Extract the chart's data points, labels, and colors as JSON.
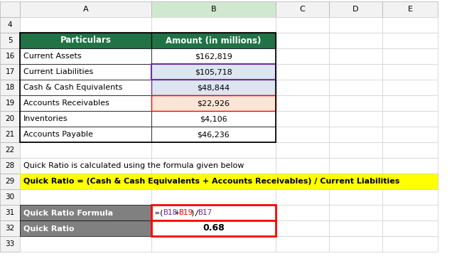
{
  "col_headers": [
    "A",
    "B",
    "C",
    "D",
    "E"
  ],
  "row_numbers": [
    "4",
    "5",
    "16",
    "17",
    "18",
    "19",
    "20",
    "21",
    "22",
    "28",
    "29",
    "30",
    "31",
    "32",
    "33"
  ],
  "table_header_row": [
    "Particulars",
    "Amount (in millions)"
  ],
  "table_rows": [
    [
      "Current Assets",
      "$162,819"
    ],
    [
      "Current Liabilities",
      "$105,718"
    ],
    [
      "Cash & Cash Equivalents",
      "$48,844"
    ],
    [
      "Accounts Receivables",
      "$22,926"
    ],
    [
      "Inventories",
      "$4,106"
    ],
    [
      "Accounts Payable",
      "$46,236"
    ]
  ],
  "note_text": "Quick Ratio is calculated using the formula given below",
  "formula_text": "Quick Ratio = (Cash & Cash Equivalents + Accounts Receivables) / Current Liabilities",
  "formula_label": "Quick Ratio Formula",
  "formula_value_parts": [
    "=(",
    "B18",
    "+",
    "B19",
    ")/",
    "B17"
  ],
  "formula_value_colors": [
    "#000000",
    "#7030a0",
    "#000000",
    "#ff0000",
    "#000000",
    "#7030a0"
  ],
  "result_label": "Quick Ratio",
  "result_value": "0.68",
  "header_bg": "#217346",
  "header_fg": "#ffffff",
  "yellow_bg": "#ffff00",
  "dark_bg": "#808080",
  "dark_fg": "#ffffff",
  "grid_color": "#d0d0d0",
  "purple_border": "#7030a0",
  "red_border": "#ff0000",
  "light_purple_bg": "#dce6f1",
  "light_red_bg": "#fce4d6",
  "col_header_bg": "#f2f2f2",
  "row_header_bg": "#f2f2f2"
}
